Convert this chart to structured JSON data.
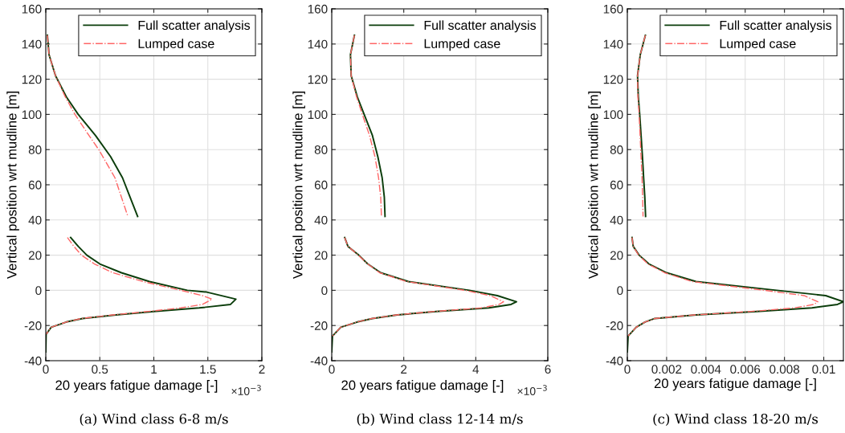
{
  "chart_data": [
    {
      "type": "line",
      "title": "(a) Wind class 6-8 m/s",
      "xlabel": "20 years fatigue damage [-]",
      "ylabel": "Vertical position wrt mudline [m]",
      "annotations": [
        "×10$^{−3}$"
      ],
      "xlim": [
        0,
        2
      ],
      "xticks": [
        0,
        0.5,
        1,
        1.5,
        2
      ],
      "ylim": [
        -40,
        160
      ],
      "yticks": [
        -40,
        -20,
        0,
        20,
        40,
        60,
        80,
        100,
        120,
        140,
        160
      ],
      "grid": true,
      "legend": "top right",
      "series": [
        {
          "name": "Full scatter analysis",
          "color": "#0b3d0b",
          "line_style": "solid",
          "x": [
            0.015,
            0.03,
            0.09,
            0.19,
            0.3,
            0.46,
            0.6,
            0.71,
            0.78,
            0.85,
            null,
            0.23,
            0.3,
            0.38,
            0.5,
            0.7,
            0.96,
            1.31,
            1.49,
            1.76,
            1.71,
            1.42,
            1.0,
            0.65,
            0.34,
            0.19,
            0.05,
            0.003,
            0
          ],
          "values": [
            145,
            134,
            122,
            110,
            100,
            88,
            76,
            64,
            53,
            42,
            null,
            30,
            25,
            20,
            15,
            10,
            5,
            0,
            -1,
            -5,
            -8,
            -10,
            -12,
            -14,
            -16,
            -18,
            -21,
            -25,
            -35
          ]
        },
        {
          "name": "Lumped case",
          "color": "#ff6666",
          "line_style": "dashdot",
          "x": [
            0.015,
            0.03,
            0.09,
            0.18,
            0.27,
            0.4,
            0.49,
            0.64,
            0.7,
            0.76,
            null,
            0.2,
            0.26,
            0.33,
            0.45,
            0.62,
            0.9,
            1.25,
            1.45,
            1.54,
            1.45,
            1.25,
            0.95,
            0.62,
            0.33,
            0.19,
            0.05,
            0.003
          ],
          "values": [
            145,
            134,
            122,
            110,
            100,
            88,
            80,
            64,
            53,
            42,
            null,
            30,
            25,
            20,
            15,
            10,
            5,
            0,
            -3,
            -5,
            -8,
            -10,
            -12,
            -14,
            -16,
            -18,
            -21,
            -25
          ]
        }
      ]
    },
    {
      "type": "line",
      "title": "(b) Wind class 12-14 m/s",
      "xlabel": "20 years fatigue damage [-]",
      "ylabel": "Vertical position wrt mudline [m]",
      "annotations": [
        "×10$^{−3}$"
      ],
      "xlim": [
        0,
        6
      ],
      "xticks": [
        0,
        2,
        4,
        6
      ],
      "ylim": [
        -40,
        160
      ],
      "yticks": [
        -40,
        -20,
        0,
        20,
        40,
        60,
        80,
        100,
        120,
        140,
        160
      ],
      "grid": true,
      "legend": "top right",
      "series": [
        {
          "name": "Full scatter analysis",
          "color": "#0b3d0b",
          "line_style": "solid",
          "x": [
            0.63,
            0.52,
            0.54,
            0.71,
            0.9,
            1.13,
            1.28,
            1.4,
            1.46,
            1.48,
            null,
            0.36,
            0.45,
            0.75,
            1.0,
            1.36,
            2.13,
            3.82,
            4.6,
            5.13,
            4.98,
            4.36,
            2.9,
            1.82,
            1.13,
            0.71,
            0.25,
            0.02,
            0
          ],
          "values": [
            145,
            134,
            122,
            110,
            100,
            88,
            76,
            64,
            53,
            42,
            null,
            30,
            25,
            20,
            15,
            10,
            5,
            0,
            -3,
            -6.5,
            -8,
            -10,
            -12,
            -14,
            -16,
            -18,
            -21,
            -26,
            -35
          ]
        },
        {
          "name": "Lumped case",
          "color": "#ff6666",
          "line_style": "dashdot",
          "x": [
            0.63,
            0.52,
            0.54,
            0.69,
            0.85,
            1.05,
            1.2,
            1.3,
            1.36,
            1.38,
            null,
            0.36,
            0.45,
            0.74,
            1.0,
            1.33,
            2.08,
            3.7,
            4.4,
            4.77,
            4.65,
            4.15,
            2.85,
            1.8,
            1.12,
            0.7,
            0.25,
            0.02
          ],
          "values": [
            145,
            134,
            122,
            110,
            100,
            88,
            76,
            64,
            53,
            42,
            null,
            30,
            25,
            20,
            15,
            10,
            5,
            0,
            -3,
            -6.5,
            -8,
            -10,
            -12,
            -14,
            -16,
            -18,
            -21,
            -26
          ]
        }
      ]
    },
    {
      "type": "line",
      "title": "(c) Wind class 18-20 m/s",
      "xlabel": "20 years fatigue damage [-]",
      "ylabel": "Vertical position wrt mudline [m]",
      "xlim": [
        0,
        0.011
      ],
      "xticks": [
        0,
        0.002,
        0.004,
        0.006,
        0.008,
        0.01
      ],
      "ylim": [
        -40,
        160
      ],
      "yticks": [
        -40,
        -20,
        0,
        20,
        40,
        60,
        80,
        100,
        120,
        140,
        160
      ],
      "grid": true,
      "legend": "top right",
      "series": [
        {
          "name": "Full scatter analysis",
          "color": "#0b3d0b",
          "line_style": "solid",
          "x": [
            0.00092,
            0.00066,
            0.00052,
            0.00056,
            0.00063,
            0.0007,
            0.00077,
            0.00083,
            0.00089,
            0.00093,
            null,
            0.00024,
            0.0003,
            0.0006,
            0.0011,
            0.002,
            0.0035,
            0.0076,
            0.0101,
            0.011,
            0.0107,
            0.0094,
            0.0066,
            0.0035,
            0.0014,
            0.0009,
            0.00045,
            4e-05,
            0
          ],
          "values": [
            145,
            134,
            122,
            110,
            100,
            88,
            76,
            64,
            53,
            42,
            null,
            30,
            25,
            20,
            15,
            10,
            5,
            0,
            -3,
            -6.5,
            -8,
            -10,
            -12,
            -14,
            -16,
            -18,
            -21,
            -26,
            -35
          ]
        },
        {
          "name": "Lumped case",
          "color": "#ff6666",
          "line_style": "dashdot",
          "x": [
            0.00092,
            0.00066,
            0.00052,
            0.00054,
            0.0006,
            0.00065,
            0.0007,
            0.00075,
            0.00078,
            0.0008,
            null,
            0.00024,
            0.0003,
            0.00058,
            0.00105,
            0.0019,
            0.0033,
            0.007,
            0.009,
            0.0097,
            0.0095,
            0.0085,
            0.0063,
            0.0034,
            0.0014,
            0.0009,
            0.00045,
            4e-05
          ],
          "values": [
            145,
            134,
            122,
            110,
            100,
            88,
            76,
            64,
            53,
            42,
            null,
            30,
            25,
            20,
            15,
            10,
            5,
            0,
            -3,
            -6.5,
            -8,
            -10,
            -12,
            -14,
            -16,
            -18,
            -21,
            -26
          ]
        }
      ]
    }
  ]
}
